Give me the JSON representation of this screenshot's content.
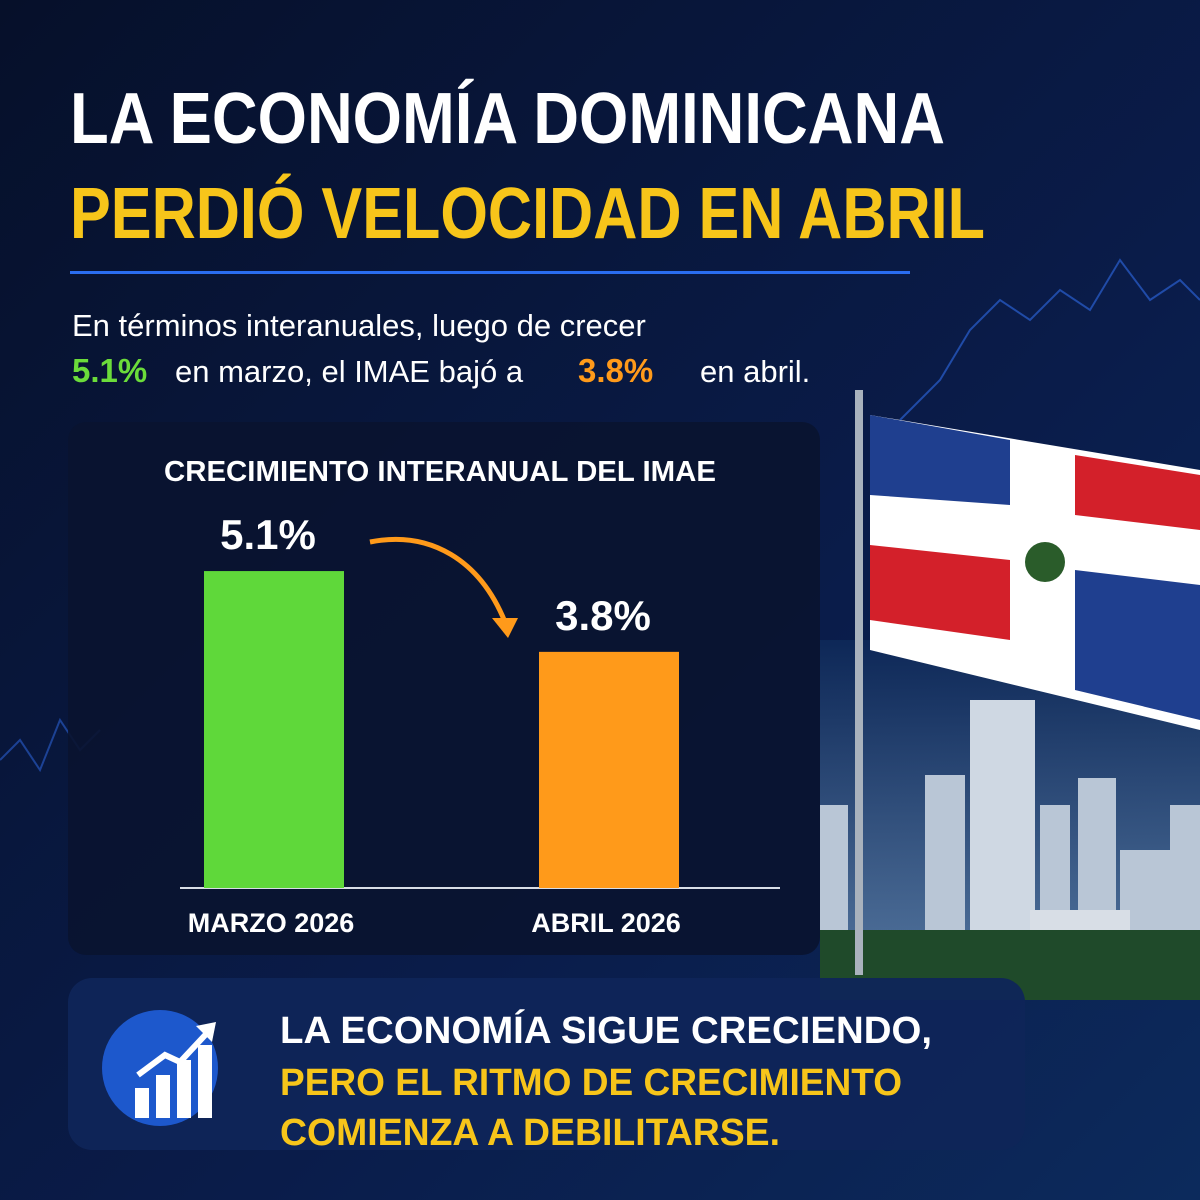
{
  "header": {
    "title_line1": "LA ECONOMÍA DOMINICANA",
    "title_line2": "PERDIÓ VELOCIDAD EN ABRIL"
  },
  "subtitle": {
    "line1": "En términos interanuales, luego de crecer",
    "part1": "5.1%",
    "part2": "en marzo, el IMAE bajó a",
    "part3": "3.8%",
    "part4": "en abril."
  },
  "chart_data": {
    "type": "bar",
    "title": "CRECIMIENTO INTERANUAL DEL IMAE",
    "categories": [
      "MARZO 2026",
      "ABRIL 2026"
    ],
    "values": [
      5.1,
      3.8
    ],
    "value_labels": [
      "5.1%",
      "3.8%"
    ],
    "colors": [
      "#5fd83a",
      "#ff9a1a"
    ],
    "ylim": [
      0,
      5.6
    ]
  },
  "footer": {
    "line1": "LA ECONOMÍA SIGUE CRECIENDO,",
    "line2": "PERO EL RITMO DE CRECIMIENTO",
    "line3": "COMIENZA A DEBILITARSE."
  }
}
